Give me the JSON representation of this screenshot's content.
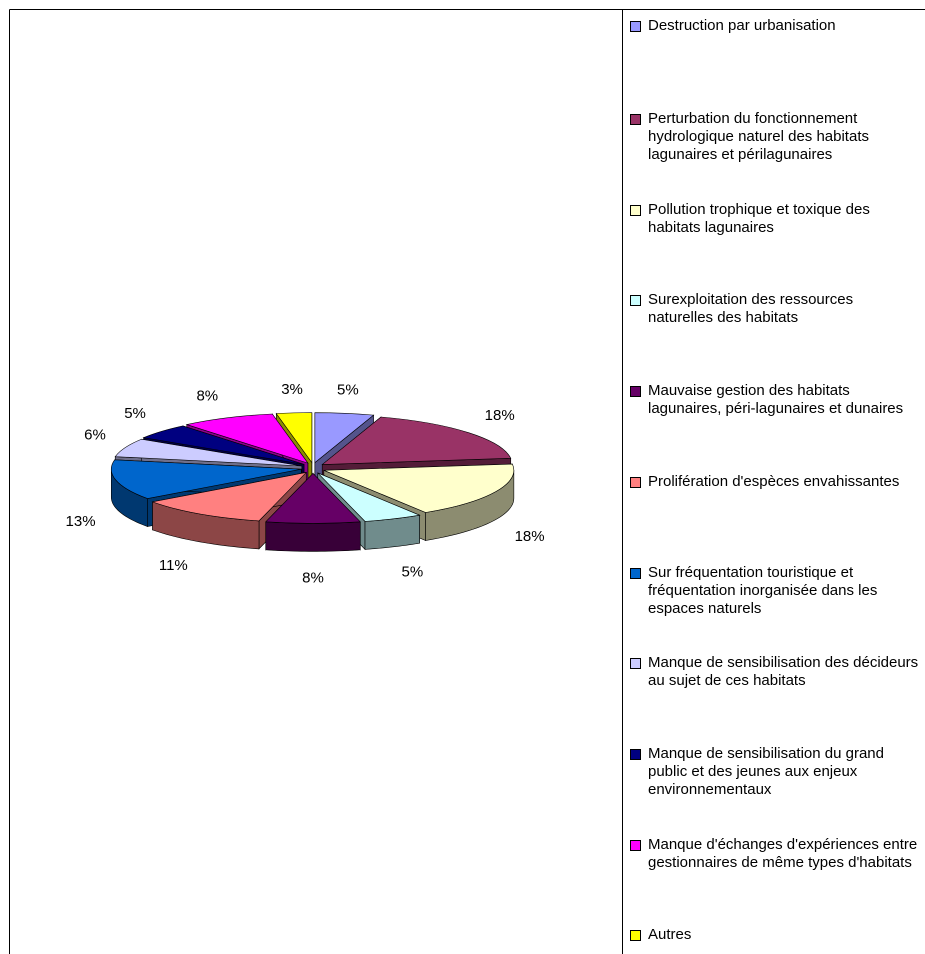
{
  "chart_data": {
    "type": "pie3d",
    "categories": [
      "Destruction par urbanisation",
      "Perturbation du fonctionnement hydrologique naturel des habitats lagunaires et périlagunaires",
      "Pollution trophique et toxique des habitats lagunaires",
      "Surexploitation des ressources naturelles des habitats",
      "Mauvaise gestion des habitats lagunaires, péri-lagunaires et dunaires",
      "Prolifération d'espèces envahissantes",
      "Sur fréquentation touristique et fréquentation inorganisée dans les espaces naturels",
      "Manque de sensibilisation des décideurs au sujet de ces habitats",
      "Manque de sensibilisation du grand public et des jeunes aux enjeux environnementaux",
      "Manque d'échanges d'expériences entre gestionnaires de même types d'habitats",
      "Autres"
    ],
    "values": [
      5,
      18,
      18,
      5,
      8,
      11,
      13,
      6,
      5,
      8,
      3
    ],
    "value_labels": [
      "5%",
      "18%",
      "18%",
      "5%",
      "8%",
      "11%",
      "13%",
      "6%",
      "5%",
      "8%",
      "3%"
    ],
    "colors": [
      "#9999ff",
      "#993366",
      "#ffffcc",
      "#ccffff",
      "#660066",
      "#ff8080",
      "#0066cc",
      "#ccccff",
      "#000080",
      "#ff00ff",
      "#ffff00"
    ],
    "legend": "right"
  }
}
